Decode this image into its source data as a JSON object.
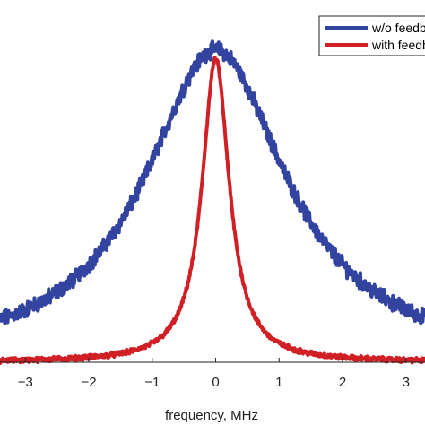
{
  "chart_data": {
    "type": "line",
    "title": "",
    "xlabel": "frequency, MHz",
    "ylabel": "",
    "xlim": [
      -3.4,
      3.3
    ],
    "ylim": [
      0,
      1.05
    ],
    "grid": false,
    "legend_position": "top-right",
    "x_ticks": [
      -3,
      -2,
      -1,
      0,
      1,
      2,
      3
    ],
    "x_tick_labels": [
      "−3",
      "−2",
      "−1",
      "0",
      "1",
      "2",
      "3"
    ],
    "series": [
      {
        "name": "w/o feedback",
        "color": "#3344a0",
        "shape": "lorentzian",
        "center": 0,
        "peak": 1.0,
        "hwhm": 1.35,
        "baseline": 0.0,
        "noise": 0.02,
        "x": [
          -3.4,
          -3,
          -2.5,
          -2,
          -1.5,
          -1,
          -0.5,
          0,
          0.5,
          1,
          1.5,
          2,
          2.5,
          3,
          3.3
        ],
        "y": [
          0.1,
          0.14,
          0.22,
          0.31,
          0.45,
          0.62,
          0.83,
          1.0,
          0.84,
          0.64,
          0.46,
          0.31,
          0.21,
          0.14,
          0.1
        ]
      },
      {
        "name": "with feedback",
        "color": "#d11f26",
        "shape": "lorentzian",
        "center": 0,
        "peak": 0.97,
        "hwhm": 0.26,
        "baseline": 0.0,
        "noise": 0.006,
        "x": [
          -3.4,
          -3,
          -2,
          -1.5,
          -1,
          -0.5,
          -0.25,
          0,
          0.25,
          0.5,
          1,
          1.5,
          2,
          3,
          3.3
        ],
        "y": [
          0.06,
          0.07,
          0.09,
          0.12,
          0.17,
          0.36,
          0.61,
          0.97,
          0.58,
          0.34,
          0.17,
          0.11,
          0.08,
          0.06,
          0.055
        ]
      }
    ],
    "legend_entries": [
      "w/o feedback",
      "with feedback"
    ]
  }
}
